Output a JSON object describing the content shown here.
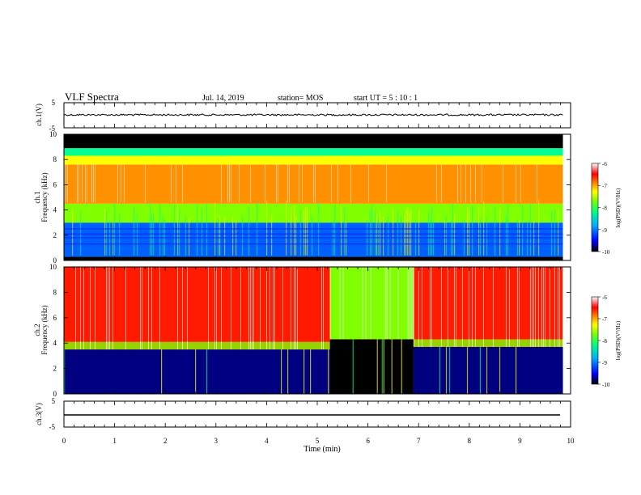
{
  "header": {
    "title": "VLF Spectra",
    "date": "Jul. 14, 2019",
    "station": "station= MOS",
    "start": "start UT = 5 : 10 : 1"
  },
  "chart_data": [
    {
      "type": "line",
      "panel": "ch1-waveform",
      "ylabel": "ch.1(V)",
      "ylim": [
        -5,
        5
      ],
      "yticks": [
        "5",
        "-5"
      ],
      "series": [
        {
          "values": [
            0,
            0
          ]
        }
      ],
      "x": [
        0,
        9.85
      ]
    },
    {
      "type": "heatmap",
      "panel": "ch1-spectrogram",
      "ylabel": "ch.1",
      "ylabel2": "Frequency (kHz)",
      "ylim": [
        0,
        10
      ],
      "yticks": [
        "0",
        "2",
        "4",
        "6",
        "8",
        "10"
      ],
      "xlim": [
        0,
        10
      ],
      "x_extent": [
        0,
        9.85
      ],
      "bands": [
        {
          "from": 0,
          "to": 0.3,
          "level": -10
        },
        {
          "from": 0.3,
          "to": 3.0,
          "level": -8.9
        },
        {
          "from": 3.0,
          "to": 4.5,
          "level": -7.9
        },
        {
          "from": 4.5,
          "to": 7.6,
          "level": -6.9
        },
        {
          "from": 7.6,
          "to": 8.3,
          "level": -7.5
        },
        {
          "from": 8.3,
          "to": 8.9,
          "level": -8.3
        },
        {
          "from": 8.9,
          "to": 10,
          "level": -10
        }
      ],
      "colorbar": {
        "label": "log(PSD)(V²/Hz)",
        "range": [
          -10,
          -6
        ],
        "ticks": [
          "-6",
          "-7",
          "-8",
          "-9",
          "-10"
        ]
      }
    },
    {
      "type": "heatmap",
      "panel": "ch2-spectrogram",
      "ylabel": "ch.2",
      "ylabel2": "Frequency (kHz)",
      "ylim": [
        0,
        10
      ],
      "yticks": [
        "0",
        "2",
        "4",
        "6",
        "8",
        "10"
      ],
      "xlim": [
        0,
        10
      ],
      "x_extent": [
        0,
        9.85
      ],
      "segments": [
        {
          "t0": 0,
          "t1": 5.25,
          "lower_edge_khz": 3.5,
          "upper_level": -6.5
        },
        {
          "t0": 5.25,
          "t1": 6.9,
          "lower_edge_khz": 4.3,
          "upper_level": -8.0
        },
        {
          "t0": 6.9,
          "t1": 9.85,
          "lower_edge_khz": 3.7,
          "upper_level": -6.5
        }
      ],
      "colorbar": {
        "label": "log(PSD)(V²/Hz)",
        "range": [
          -10,
          -6
        ],
        "ticks": [
          "-6",
          "-7",
          "-8",
          "-9",
          "-10"
        ]
      }
    },
    {
      "type": "line",
      "panel": "ch3-waveform",
      "ylabel": "ch.3(V)",
      "ylim": [
        -5,
        5
      ],
      "yticks": [
        "5",
        "-5"
      ],
      "series": [
        {
          "values": [
            -1.2,
            -1.2
          ]
        }
      ],
      "x": [
        0,
        9.85
      ]
    }
  ],
  "xaxis": {
    "label": "Time (min)",
    "ticks": [
      "0",
      "1",
      "2",
      "3",
      "4",
      "5",
      "6",
      "7",
      "8",
      "9",
      "10"
    ],
    "range": [
      0,
      10
    ]
  },
  "colormap": [
    "#000080",
    "#0000ff",
    "#0080ff",
    "#00d0ff",
    "#00ff80",
    "#80ff00",
    "#ffff00",
    "#ff8000",
    "#ff0000",
    "#ffffff"
  ]
}
